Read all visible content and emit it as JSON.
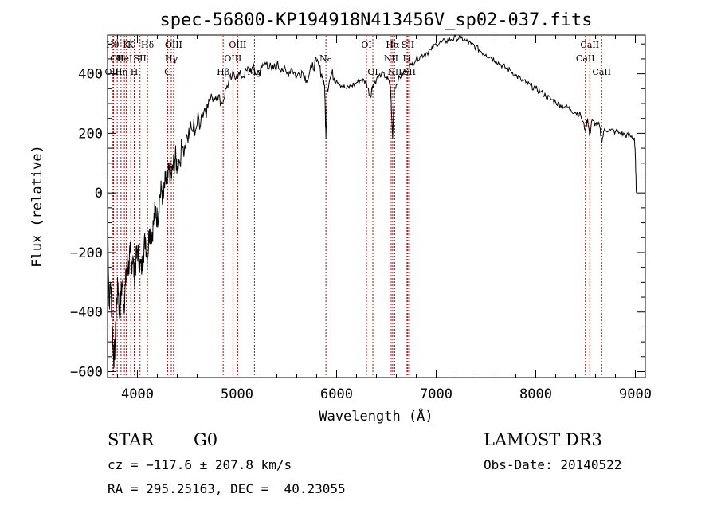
{
  "chart_data": {
    "type": "line",
    "title": "spec-56800-KP194918N413456V_sp02-037.fits",
    "xlabel": "Wavelength (Å)",
    "ylabel": "Flux (relative)",
    "xlim": [
      3700,
      9100
    ],
    "ylim": [
      -620,
      530
    ],
    "xticks": [
      4000,
      5000,
      6000,
      7000,
      8000,
      9000
    ],
    "yticks": [
      -600,
      -400,
      -200,
      0,
      200,
      400
    ],
    "series": [
      {
        "name": "flux",
        "points": [
          [
            3700,
            -50
          ],
          [
            3715,
            -380
          ],
          [
            3730,
            -300
          ],
          [
            3745,
            -420
          ],
          [
            3760,
            -560
          ],
          [
            3775,
            -520
          ],
          [
            3790,
            -380
          ],
          [
            3805,
            -300
          ],
          [
            3820,
            -420
          ],
          [
            3835,
            -340
          ],
          [
            3850,
            -300
          ],
          [
            3865,
            -380
          ],
          [
            3880,
            -310
          ],
          [
            3895,
            -230
          ],
          [
            3910,
            -260
          ],
          [
            3925,
            -200
          ],
          [
            3940,
            -240
          ],
          [
            3955,
            -210
          ],
          [
            3970,
            -290
          ],
          [
            3985,
            -230
          ],
          [
            4000,
            -190
          ],
          [
            4020,
            -230
          ],
          [
            4040,
            -260
          ],
          [
            4060,
            -200
          ],
          [
            4080,
            -150
          ],
          [
            4100,
            -220
          ],
          [
            4120,
            -120
          ],
          [
            4140,
            -140
          ],
          [
            4160,
            -110
          ],
          [
            4180,
            -50
          ],
          [
            4200,
            -90
          ],
          [
            4220,
            -20
          ],
          [
            4240,
            10
          ],
          [
            4260,
            -20
          ],
          [
            4280,
            40
          ],
          [
            4300,
            30
          ],
          [
            4320,
            80
          ],
          [
            4340,
            50
          ],
          [
            4360,
            90
          ],
          [
            4380,
            120
          ],
          [
            4400,
            90
          ],
          [
            4450,
            150
          ],
          [
            4500,
            190
          ],
          [
            4550,
            210
          ],
          [
            4600,
            230
          ],
          [
            4650,
            270
          ],
          [
            4700,
            300
          ],
          [
            4750,
            320
          ],
          [
            4800,
            330
          ],
          [
            4850,
            300
          ],
          [
            4900,
            360
          ],
          [
            4950,
            390
          ],
          [
            5000,
            400
          ],
          [
            5050,
            390
          ],
          [
            5100,
            410
          ],
          [
            5150,
            420
          ],
          [
            5200,
            400
          ],
          [
            5250,
            420
          ],
          [
            5300,
            440
          ],
          [
            5350,
            410
          ],
          [
            5400,
            430
          ],
          [
            5450,
            420
          ],
          [
            5500,
            400
          ],
          [
            5550,
            420
          ],
          [
            5600,
            390
          ],
          [
            5650,
            410
          ],
          [
            5700,
            380
          ],
          [
            5750,
            420
          ],
          [
            5800,
            440
          ],
          [
            5850,
            400
          ],
          [
            5880,
            360
          ],
          [
            5893,
            180
          ],
          [
            5905,
            350
          ],
          [
            5950,
            400
          ],
          [
            6000,
            380
          ],
          [
            6050,
            360
          ],
          [
            6100,
            350
          ],
          [
            6150,
            360
          ],
          [
            6200,
            370
          ],
          [
            6250,
            380
          ],
          [
            6300,
            370
          ],
          [
            6340,
            320
          ],
          [
            6360,
            360
          ],
          [
            6400,
            380
          ],
          [
            6450,
            400
          ],
          [
            6500,
            390
          ],
          [
            6540,
            360
          ],
          [
            6563,
            180
          ],
          [
            6580,
            350
          ],
          [
            6620,
            380
          ],
          [
            6660,
            400
          ],
          [
            6700,
            410
          ],
          [
            6750,
            430
          ],
          [
            6800,
            450
          ],
          [
            6850,
            460
          ],
          [
            6900,
            470
          ],
          [
            6950,
            480
          ],
          [
            7000,
            500
          ],
          [
            7050,
            505
          ],
          [
            7100,
            510
          ],
          [
            7150,
            515
          ],
          [
            7200,
            520
          ],
          [
            7250,
            520
          ],
          [
            7300,
            510
          ],
          [
            7350,
            500
          ],
          [
            7400,
            490
          ],
          [
            7450,
            475
          ],
          [
            7500,
            465
          ],
          [
            7550,
            455
          ],
          [
            7600,
            445
          ],
          [
            7650,
            430
          ],
          [
            7700,
            420
          ],
          [
            7750,
            410
          ],
          [
            7800,
            395
          ],
          [
            7850,
            380
          ],
          [
            7900,
            370
          ],
          [
            7950,
            360
          ],
          [
            8000,
            350
          ],
          [
            8050,
            340
          ],
          [
            8100,
            325
          ],
          [
            8150,
            315
          ],
          [
            8200,
            305
          ],
          [
            8250,
            295
          ],
          [
            8300,
            290
          ],
          [
            8350,
            280
          ],
          [
            8400,
            270
          ],
          [
            8450,
            262
          ],
          [
            8498,
            210
          ],
          [
            8520,
            250
          ],
          [
            8542,
            190
          ],
          [
            8560,
            240
          ],
          [
            8600,
            232
          ],
          [
            8640,
            225
          ],
          [
            8662,
            170
          ],
          [
            8690,
            215
          ],
          [
            8750,
            210
          ],
          [
            8800,
            205
          ],
          [
            8850,
            200
          ],
          [
            8900,
            195
          ],
          [
            8950,
            190
          ],
          [
            8990,
            185
          ],
          [
            9000,
            120
          ],
          [
            9010,
            0
          ]
        ]
      }
    ],
    "spectral_lines": [
      {
        "x": 3750,
        "label": "Hθ",
        "row": 0
      },
      {
        "x": 3797,
        "label": "OII",
        "row": 1
      },
      {
        "x": 3760,
        "label": "OIII",
        "row": 2
      },
      {
        "x": 3835,
        "label": "Hη",
        "row": 2
      },
      {
        "x": 3869,
        "label": "HeI",
        "row": 1
      },
      {
        "x": 3889,
        "label": "K",
        "row": 0
      },
      {
        "x": 3933,
        "label": "K",
        "row": 0
      },
      {
        "x": 3968,
        "label": "H",
        "row": 2
      },
      {
        "x": 4026,
        "label": "SII",
        "row": 1
      },
      {
        "x": 4101,
        "label": "Hδ",
        "row": 0
      },
      {
        "x": 4304,
        "label": "G",
        "row": 2
      },
      {
        "x": 4340,
        "label": "Hγ",
        "row": 1
      },
      {
        "x": 4363,
        "label": "OIII",
        "row": 0
      },
      {
        "x": 4861,
        "label": "Hβ",
        "row": 2
      },
      {
        "x": 4959,
        "label": "OIII",
        "row": 1
      },
      {
        "x": 5007,
        "label": "OIII",
        "row": 0
      },
      {
        "x": 5175,
        "label": "Mg",
        "row": 2
      },
      {
        "x": 5893,
        "label": "Na",
        "row": 1
      },
      {
        "x": 6300,
        "label": "OI",
        "row": 0
      },
      {
        "x": 6364,
        "label": "OI",
        "row": 2
      },
      {
        "x": 6548,
        "label": "NII",
        "row": 1
      },
      {
        "x": 6563,
        "label": "Hα",
        "row": 0
      },
      {
        "x": 6583,
        "label": "NII",
        "row": 2
      },
      {
        "x": 6707,
        "label": "Li",
        "row": 1
      },
      {
        "x": 6716,
        "label": "SII",
        "row": 0
      },
      {
        "x": 6731,
        "label": "SII",
        "row": 2
      },
      {
        "x": 8498,
        "label": "CaII",
        "row": 1
      },
      {
        "x": 8542,
        "label": "CaII",
        "row": 0
      },
      {
        "x": 8662,
        "label": "CaII",
        "row": 2
      }
    ]
  },
  "info": {
    "class": "STAR",
    "subclass": "G0",
    "survey": "LAMOST DR3",
    "cz": "cz = −117.6 ± 207.8 km/s",
    "obs_date": "Obs-Date: 20140522",
    "coords": "RA = 295.25163, DEC =  40.23055"
  }
}
